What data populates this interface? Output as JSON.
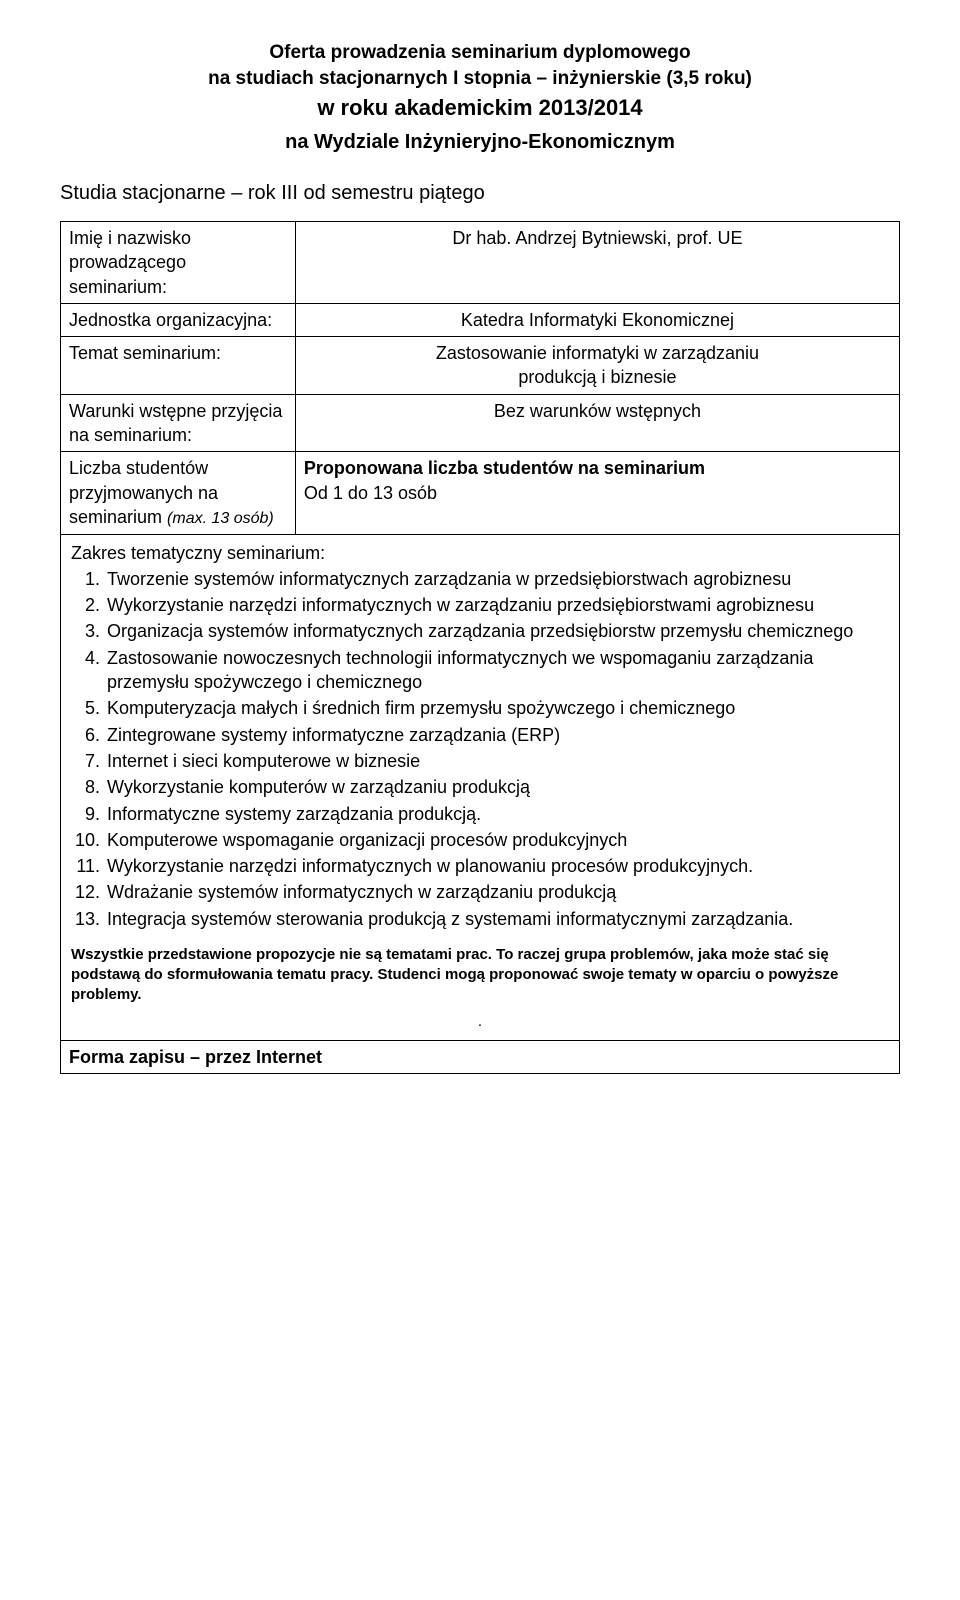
{
  "header": {
    "line1": "Oferta prowadzenia seminarium dyplomowego",
    "line2": "na studiach stacjonarnych I stopnia – inżynierskie (3,5 roku)",
    "line3": "w roku akademickim  2013/2014",
    "line4": "na Wydziale  Inżynieryjno-Ekonomicznym"
  },
  "subheader": "Studia stacjonarne – rok III od semestru piątego",
  "rows": {
    "r1_label": "Imię i nazwisko prowadzącego seminarium:",
    "r1_value": "Dr hab. Andrzej Bytniewski, prof. UE",
    "r2_label": "Jednostka organizacyjna:",
    "r2_value": "Katedra Informatyki Ekonomicznej",
    "r3_label": "Temat seminarium:",
    "r3_value_l1": "Zastosowanie informatyki w zarządzaniu",
    "r3_value_l2": "produkcją i biznesie",
    "r4_label": "Warunki wstępne przyjęcia na seminarium:",
    "r4_value": "Bez warunków wstępnych",
    "r5_label_a": "Liczba studentów przyjmowanych na seminarium ",
    "r5_label_b": "(max. 13 osób)",
    "r5_value_l1": "Proponowana liczba studentów na seminarium",
    "r5_value_l2": "Od 1 do 13 osób"
  },
  "zakres_title": "Zakres tematyczny seminarium:",
  "items": [
    "Tworzenie systemów informatycznych zarządzania w przedsiębiorstwach agrobiznesu",
    "Wykorzystanie narzędzi informatycznych w zarządzaniu przedsiębiorstwami agrobiznesu",
    "Organizacja systemów informatycznych zarządzania przedsiębiorstw przemysłu chemicznego",
    "Zastosowanie nowoczesnych technologii informatycznych we wspomaganiu zarządzania przemysłu spożywczego i chemicznego",
    "Komputeryzacja małych i średnich firm przemysłu spożywczego i chemicznego",
    "Zintegrowane systemy informatyczne zarządzania (ERP)",
    "Internet i sieci komputerowe w biznesie",
    "Wykorzystanie komputerów w zarządzaniu produkcją",
    "Informatyczne systemy zarządzania produkcją.",
    "Komputerowe wspomaganie organizacji procesów produkcyjnych",
    "Wykorzystanie narzędzi informatycznych w planowaniu procesów produkcyjnych.",
    "Wdrażanie systemów informatycznych w zarządzaniu produkcją",
    "Integracja systemów sterowania produkcją z systemami informatycznymi zarządzania."
  ],
  "note": "Wszystkie przedstawione propozycje nie są tematami prac. To raczej grupa problemów, jaka może stać się podstawą do sformułowania tematu pracy. Studenci mogą proponować swoje tematy w oparciu o powyższe problemy.",
  "dot": ".",
  "form": "Forma zapisu  –  przez Internet"
}
